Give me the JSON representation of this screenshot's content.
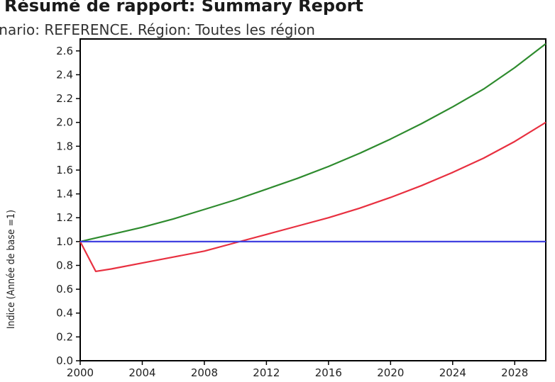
{
  "chart_data": {
    "type": "line",
    "title": "Résumé de rapport: Summary Report",
    "subtitle": "énario: REFERENCE. Région: Toutes les région",
    "ylabel": "Indice (Année de base =1)",
    "xlabel": "",
    "xlim": [
      2000,
      2030
    ],
    "ylim": [
      0,
      2.7
    ],
    "yticks": [
      0.0,
      0.2,
      0.4,
      0.6,
      0.8,
      1.0,
      1.2,
      1.4,
      1.6,
      1.8,
      2.0,
      2.2,
      2.4,
      2.6
    ],
    "ytick_labels": [
      "0.0",
      "0.2",
      "0.4",
      "0.6",
      "0.8",
      "1.0",
      "1.2",
      "1.4",
      "1.6",
      "1.8",
      "2.0",
      "2.2",
      "2.4",
      "2.6"
    ],
    "xticks": [
      2000,
      2004,
      2008,
      2012,
      2016,
      2020,
      2024,
      2028
    ],
    "xtick_labels": [
      "2000",
      "2004",
      "2008",
      "2012",
      "2016",
      "2020",
      "2024",
      "2028"
    ],
    "grid": false,
    "series": [
      {
        "color": "#2e8b2e",
        "x": [
          2000,
          2002,
          2004,
          2006,
          2008,
          2010,
          2012,
          2014,
          2016,
          2018,
          2020,
          2022,
          2024,
          2026,
          2028,
          2030
        ],
        "y": [
          1.0,
          1.06,
          1.12,
          1.19,
          1.27,
          1.35,
          1.44,
          1.53,
          1.63,
          1.74,
          1.86,
          1.99,
          2.13,
          2.28,
          2.46,
          2.66
        ]
      },
      {
        "color": "#e83040",
        "x": [
          2000,
          2001,
          2002,
          2004,
          2006,
          2008,
          2010,
          2012,
          2014,
          2016,
          2018,
          2020,
          2022,
          2024,
          2026,
          2028,
          2030
        ],
        "y": [
          1.0,
          0.75,
          0.77,
          0.82,
          0.87,
          0.92,
          0.99,
          1.06,
          1.13,
          1.2,
          1.28,
          1.37,
          1.47,
          1.58,
          1.7,
          1.84,
          2.0
        ]
      },
      {
        "color": "#4040e0",
        "x": [
          2000,
          2030
        ],
        "y": [
          1.0,
          1.0
        ]
      }
    ]
  }
}
